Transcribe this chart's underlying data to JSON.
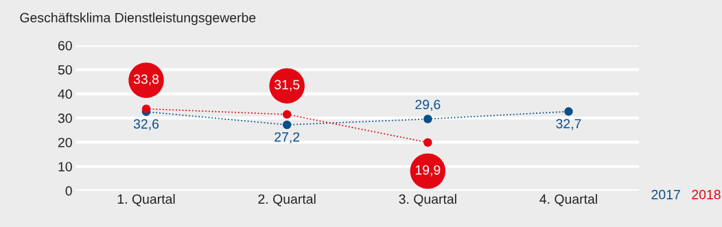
{
  "chart_data": {
    "type": "line",
    "title": "Geschäftsklima Dienstleistungsgewerbe",
    "categories": [
      "1. Quartal",
      "2. Quartal",
      "3. Quartal",
      "4. Quartal"
    ],
    "series": [
      {
        "name": "2017",
        "color": "#0b4f8c",
        "values": [
          32.6,
          27.2,
          29.6,
          32.7
        ],
        "value_labels": [
          "32,6",
          "27,2",
          "29,6",
          "32,7"
        ]
      },
      {
        "name": "2018",
        "color": "#e30613",
        "values": [
          33.8,
          31.5,
          19.9,
          null
        ],
        "value_labels": [
          "33,8",
          "31,5",
          "19,9",
          null
        ]
      }
    ],
    "ylim": [
      0,
      60
    ],
    "yticks": [
      0,
      10,
      20,
      30,
      40,
      50,
      60
    ],
    "grid": "y",
    "legend": "bottom right",
    "marker": "circle",
    "line_style": "dotted"
  }
}
